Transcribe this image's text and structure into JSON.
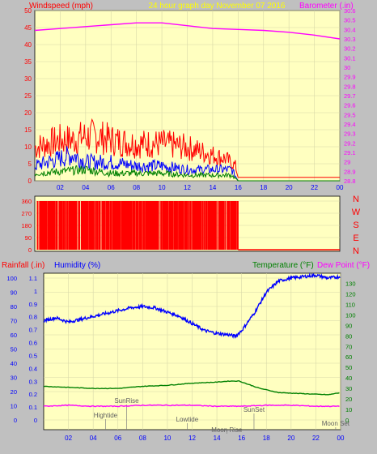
{
  "header": {
    "left_label": "Windspeed (mph)",
    "center_label": "24 hour graph day   November 07 2016",
    "right_label": "Barometer (.in)"
  },
  "colors": {
    "background": "#c0c0c0",
    "plot_bg": "#ffffc0",
    "wind": "#ff0000",
    "gust_blue": "#0000ff",
    "gust_green": "#008000",
    "barometer": "#ff00ff",
    "humidity": "#0000ff",
    "temperature": "#008000",
    "dewpoint": "#ff00ff",
    "axis_text": "#0000ff",
    "header_center": "#ffff00"
  },
  "chart_data": [
    {
      "type": "line",
      "title": "24 hour graph day   November 07 2016",
      "x_ticks": [
        "02",
        "04",
        "06",
        "08",
        "10",
        "12",
        "14",
        "16",
        "18",
        "20",
        "22",
        "00"
      ],
      "xlim": [
        0,
        24
      ],
      "grid": true,
      "left_axis": {
        "label": "Windspeed (mph)",
        "ticks": [
          0,
          5,
          10,
          15,
          20,
          25,
          30,
          35,
          40,
          45,
          50
        ],
        "ylim": [
          0,
          50
        ]
      },
      "right_axis": {
        "label": "Barometer (.in)",
        "ticks": [
          "28.8",
          "28.9",
          "29",
          "29.1",
          "29.2",
          "29.3",
          "29.4",
          "29.5",
          "29.6",
          "29.7",
          "29.8",
          "29.9",
          "30",
          "30.1",
          "30.2",
          "30.3",
          "30.4",
          "30.5",
          "30.6"
        ],
        "ylim": [
          28.8,
          30.6
        ]
      },
      "series": [
        {
          "color": "#ff0000",
          "note_x": "hour",
          "x": [
            0,
            1,
            2,
            3,
            4,
            5,
            6,
            7,
            8,
            9,
            10,
            11,
            12,
            13,
            14,
            15,
            15.8,
            16,
            24
          ],
          "y": [
            9,
            10,
            11,
            11,
            12,
            12,
            11,
            10.5,
            10,
            10,
            10,
            9.5,
            9,
            8,
            7,
            6,
            4,
            1,
            1
          ]
        },
        {
          "color": "#0000ff",
          "x": [
            0,
            2,
            3,
            4,
            6,
            8,
            10,
            12,
            14,
            15.5,
            16,
            24
          ],
          "y": [
            4,
            6,
            7,
            5,
            5,
            4,
            4,
            3,
            3,
            3,
            0,
            0
          ]
        },
        {
          "color": "#008000",
          "x": [
            0,
            2,
            4,
            6,
            8,
            10,
            12,
            14,
            15.5,
            16,
            24
          ],
          "y": [
            2,
            2.5,
            3,
            2,
            2,
            2,
            1.5,
            1.5,
            1.5,
            0,
            0
          ]
        },
        {
          "color": "#ff00ff",
          "x": [
            0,
            2,
            4,
            6,
            8,
            10,
            12,
            14,
            16,
            18,
            20,
            22,
            24
          ],
          "y": [
            30.39,
            30.41,
            30.43,
            30.45,
            30.47,
            30.47,
            30.44,
            30.41,
            30.4,
            30.39,
            30.37,
            30.34,
            30.3
          ]
        }
      ]
    },
    {
      "type": "scatter",
      "x_ticks": [],
      "xlim": [
        0,
        24
      ],
      "left_axis": {
        "ticks": [
          "0",
          "90",
          "180",
          "270",
          "360"
        ],
        "ylim": [
          0,
          360
        ]
      },
      "right_labels": [
        "N",
        "W",
        "S",
        "E",
        "N"
      ],
      "series": [
        {
          "color": "#ff0000",
          "x": [
            0.2,
            16.0
          ],
          "y": [
            360,
            360
          ]
        }
      ]
    },
    {
      "type": "line",
      "x_ticks": [
        "02",
        "04",
        "06",
        "08",
        "10",
        "12",
        "14",
        "16",
        "18",
        "20",
        "22",
        "00"
      ],
      "xlim": [
        0,
        24
      ],
      "grid": true,
      "labels": {
        "rainfall": "Rainfall (.in)",
        "humidity": "Humidity (%)",
        "temperature": "Temperature (°F)",
        "dewpoint": "Dew Point (°F)"
      },
      "left_ticks_outer": [
        "0",
        "10",
        "20",
        "30",
        "40",
        "50",
        "60",
        "70",
        "80",
        "90",
        "100"
      ],
      "left_ticks_inner": [
        "0",
        "0.1",
        "0.2",
        "0.3",
        "0.4",
        "0.5",
        "0.6",
        "0.7",
        "0.8",
        "0.9",
        "1",
        "1.1"
      ],
      "right_ticks": [
        "0",
        "10",
        "20",
        "30",
        "40",
        "50",
        "60",
        "70",
        "80",
        "90",
        "100",
        "110",
        "120",
        "130"
      ],
      "ylim_humidity": [
        0,
        100
      ],
      "ylim_temp": [
        0,
        135
      ],
      "annotations": [
        {
          "text": "SunRise",
          "x": 6.7
        },
        {
          "text": "Hightide",
          "x": 5.0
        },
        {
          "text": "Lowtide",
          "x": 11.6
        },
        {
          "text": "Moon Rise",
          "x": 14.8
        },
        {
          "text": "SunSet",
          "x": 17.0
        },
        {
          "text": "Moon Set",
          "x": 23.6
        }
      ],
      "series": [
        {
          "color": "#0000ff",
          "x": [
            0,
            1,
            2,
            3,
            4,
            5,
            6,
            7,
            8,
            9,
            10,
            11,
            12,
            13,
            14,
            15,
            15.5,
            16,
            17,
            18,
            19,
            20,
            21,
            22,
            23,
            24
          ],
          "y": [
            70,
            72,
            69,
            71,
            73,
            75,
            77,
            79,
            80,
            79,
            76,
            73,
            68,
            63,
            61,
            60,
            59,
            63,
            75,
            90,
            98,
            100,
            101,
            102,
            100,
            101
          ]
        },
        {
          "color": "#008000",
          "x": [
            0,
            2,
            4,
            6,
            7,
            8,
            10,
            12,
            14,
            15,
            15.8,
            16.5,
            17.5,
            19,
            21,
            23,
            24
          ],
          "y": [
            32,
            31,
            30,
            30,
            31,
            32,
            33,
            35,
            36,
            37,
            37,
            34,
            30,
            26,
            25,
            24,
            26
          ]
        },
        {
          "color": "#ff00ff",
          "x": [
            0,
            2,
            4,
            6,
            8,
            10,
            12,
            14,
            16,
            18,
            20,
            22,
            24
          ],
          "y": [
            13,
            14,
            13,
            13,
            14,
            14,
            14,
            13,
            13,
            14,
            14,
            13,
            13
          ]
        }
      ]
    }
  ]
}
